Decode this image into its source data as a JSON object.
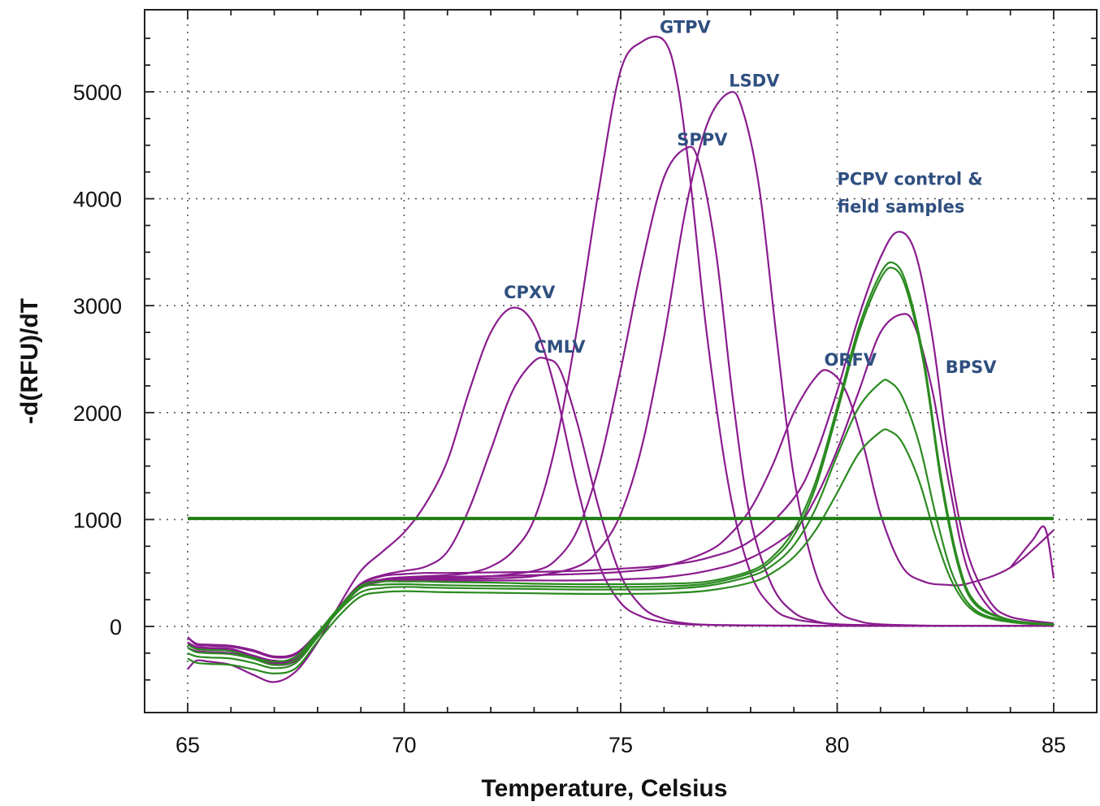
{
  "chart_data": {
    "type": "line",
    "title": "",
    "xlabel": "Temperature, Celsius",
    "ylabel": "-d(RFU)/dT",
    "xlim": [
      65,
      85
    ],
    "ylim": [
      -700,
      5800
    ],
    "xticks": [
      65,
      70,
      75,
      80,
      85
    ],
    "yticks": [
      0,
      1000,
      2000,
      3000,
      4000,
      5000
    ],
    "x_tick_labels": [
      "65",
      "70",
      "75",
      "80",
      "85"
    ],
    "y_tick_labels": [
      "0",
      "1000",
      "2000",
      "3000",
      "4000",
      "5000"
    ],
    "grid": true,
    "colors": {
      "purple": "#8a1c8e",
      "green": "#2b8a20",
      "threshold": "#1e7d14",
      "label": "#2f4f7f"
    },
    "threshold": {
      "y": 1010,
      "color": "#1e7d14"
    },
    "annotations": [
      {
        "text": "GTPV",
        "x": 75.9,
        "y": 5550
      },
      {
        "text": "LSDV",
        "x": 77.5,
        "y": 5050
      },
      {
        "text": "SPPV",
        "x": 76.3,
        "y": 4500
      },
      {
        "text": "PCPV control &",
        "x": 80.0,
        "y": 4130
      },
      {
        "text": "field samples",
        "x": 80.0,
        "y": 3870
      },
      {
        "text": "CPXV",
        "x": 72.3,
        "y": 3070
      },
      {
        "text": "CMLV",
        "x": 73.0,
        "y": 2560
      },
      {
        "text": "ORFV",
        "x": 79.7,
        "y": 2440
      },
      {
        "text": "BPSV",
        "x": 82.5,
        "y": 2370
      }
    ],
    "series": [
      {
        "color": "purple",
        "x": [
          65.0,
          65.2,
          65.5,
          66.0,
          66.5,
          67.0,
          67.5,
          68.0,
          68.5,
          69.0,
          69.5,
          70.0,
          70.5,
          71.0,
          71.5,
          72.0,
          72.5,
          73.0,
          73.5,
          74.0,
          74.5,
          75.0,
          75.5,
          76.0,
          76.5,
          77.0,
          77.5,
          78.0,
          79.0,
          80.0,
          81.0,
          82.0,
          83.0,
          84.0,
          84.5,
          85.0
        ],
        "y": [
          -400,
          -320,
          -330,
          -360,
          -450,
          -520,
          -420,
          -150,
          200,
          520,
          700,
          880,
          1150,
          1550,
          2200,
          2750,
          2980,
          2820,
          2200,
          1300,
          580,
          220,
          90,
          40,
          20,
          15,
          12,
          10,
          8,
          6,
          5,
          5,
          5,
          5,
          5,
          5
        ]
      },
      {
        "color": "purple",
        "x": [
          65.0,
          65.2,
          65.5,
          66.0,
          66.5,
          67.0,
          67.5,
          68.0,
          68.5,
          69.0,
          69.5,
          70.0,
          70.5,
          71.0,
          71.5,
          72.0,
          72.5,
          73.0,
          73.3,
          73.6,
          74.0,
          74.5,
          75.0,
          75.5,
          76.0,
          76.5,
          77.0,
          77.5,
          78.0,
          79.0,
          80.0,
          81.0,
          82.0,
          83.0,
          84.0,
          85.0
        ],
        "y": [
          -150,
          -210,
          -220,
          -230,
          -290,
          -340,
          -300,
          -80,
          180,
          400,
          480,
          520,
          560,
          700,
          1100,
          1650,
          2200,
          2480,
          2500,
          2400,
          1900,
          1100,
          480,
          180,
          70,
          30,
          15,
          10,
          8,
          6,
          5,
          5,
          5,
          5,
          5,
          5
        ]
      },
      {
        "color": "purple",
        "x": [
          65.0,
          65.2,
          65.5,
          66.0,
          66.5,
          67.0,
          67.5,
          68.0,
          68.5,
          69.0,
          69.5,
          70.0,
          70.5,
          71.0,
          71.5,
          72.0,
          72.5,
          73.0,
          73.5,
          74.0,
          74.5,
          75.0,
          75.5,
          76.0,
          76.3,
          76.6,
          77.0,
          77.5,
          78.0,
          78.5,
          79.0,
          80.0,
          81.0,
          82.0,
          83.0,
          84.0,
          85.0
        ],
        "y": [
          -150,
          -200,
          -210,
          -220,
          -280,
          -350,
          -320,
          -100,
          170,
          380,
          440,
          460,
          470,
          480,
          500,
          560,
          700,
          1000,
          1700,
          2800,
          4100,
          5200,
          5470,
          5480,
          5100,
          4200,
          2700,
          1300,
          500,
          180,
          70,
          20,
          10,
          5,
          5,
          5,
          5
        ]
      },
      {
        "color": "purple",
        "x": [
          65.0,
          65.2,
          65.5,
          66.0,
          66.5,
          67.0,
          67.5,
          68.0,
          68.5,
          69.0,
          69.5,
          70.0,
          70.5,
          71.0,
          72.0,
          73.0,
          73.5,
          74.0,
          74.5,
          75.0,
          75.5,
          76.0,
          76.5,
          76.8,
          77.2,
          77.6,
          78.0,
          78.5,
          79.0,
          79.5,
          80.0,
          81.0,
          82.0,
          83.0,
          84.0,
          85.0
        ],
        "y": [
          -150,
          -200,
          -210,
          -220,
          -280,
          -340,
          -310,
          -90,
          170,
          380,
          430,
          450,
          450,
          455,
          470,
          520,
          620,
          900,
          1500,
          2400,
          3400,
          4200,
          4470,
          4350,
          3500,
          2100,
          1000,
          380,
          130,
          50,
          20,
          10,
          5,
          5,
          5,
          5
        ]
      },
      {
        "color": "purple",
        "x": [
          65.0,
          65.2,
          65.5,
          66.0,
          66.5,
          67.0,
          67.5,
          68.0,
          68.5,
          69.0,
          69.5,
          70.0,
          70.5,
          71.0,
          72.0,
          73.0,
          74.0,
          74.5,
          75.0,
          75.5,
          76.0,
          76.5,
          77.0,
          77.5,
          77.8,
          78.2,
          78.6,
          79.0,
          79.5,
          80.0,
          80.5,
          81.0,
          82.0,
          83.0,
          84.0,
          85.0
        ],
        "y": [
          -150,
          -190,
          -200,
          -210,
          -270,
          -320,
          -300,
          -80,
          160,
          370,
          420,
          440,
          440,
          445,
          450,
          470,
          560,
          720,
          1050,
          1700,
          2700,
          3900,
          4700,
          4990,
          4850,
          4100,
          2700,
          1400,
          500,
          150,
          50,
          20,
          8,
          5,
          5,
          5
        ]
      },
      {
        "color": "purple",
        "x": [
          65.0,
          65.2,
          65.5,
          66.0,
          66.5,
          67.0,
          67.5,
          68.0,
          68.5,
          69.0,
          69.5,
          70.0,
          70.5,
          71.0,
          72.0,
          73.0,
          74.0,
          75.0,
          76.0,
          77.0,
          77.5,
          78.0,
          78.5,
          79.0,
          79.5,
          79.8,
          80.2,
          80.6,
          81.0,
          81.5,
          82.0,
          82.5,
          83.0,
          84.0,
          85.0
        ],
        "y": [
          -200,
          -230,
          -240,
          -250,
          -300,
          -360,
          -320,
          -100,
          160,
          380,
          440,
          460,
          460,
          465,
          470,
          480,
          490,
          510,
          560,
          700,
          850,
          1100,
          1500,
          2000,
          2330,
          2390,
          2200,
          1700,
          1050,
          560,
          420,
          390,
          400,
          550,
          900
        ]
      },
      {
        "color": "purple",
        "x": [
          84.0,
          84.5,
          84.8,
          85.0
        ],
        "y": [
          550,
          800,
          920,
          450
        ]
      },
      {
        "color": "purple",
        "x": [
          65.0,
          65.2,
          65.5,
          66.0,
          66.5,
          67.0,
          67.5,
          68.0,
          68.5,
          69.0,
          69.5,
          70.0,
          70.5,
          71.0,
          72.0,
          73.0,
          74.0,
          75.0,
          76.0,
          77.0,
          78.0,
          79.0,
          79.5,
          80.0,
          80.5,
          81.0,
          81.4,
          81.8,
          82.2,
          82.6,
          83.0,
          83.5,
          84.0,
          85.0
        ],
        "y": [
          -100,
          -170,
          -180,
          -190,
          -230,
          -290,
          -260,
          -60,
          170,
          390,
          470,
          490,
          500,
          500,
          505,
          510,
          520,
          540,
          570,
          640,
          800,
          1200,
          1600,
          2200,
          2900,
          3450,
          3690,
          3500,
          2700,
          1500,
          700,
          250,
          90,
          30
        ]
      },
      {
        "color": "purple",
        "x": [
          65.0,
          65.2,
          65.5,
          66.0,
          66.5,
          67.0,
          67.5,
          68.0,
          68.5,
          69.0,
          69.5,
          70.0,
          70.5,
          71.0,
          72.0,
          73.0,
          74.0,
          75.0,
          76.0,
          77.0,
          78.0,
          79.0,
          79.5,
          80.0,
          80.5,
          81.0,
          81.5,
          81.8,
          82.2,
          82.6,
          83.0,
          83.5,
          84.0,
          85.0
        ],
        "y": [
          -100,
          -160,
          -170,
          -180,
          -220,
          -280,
          -250,
          -60,
          160,
          360,
          420,
          430,
          430,
          430,
          430,
          430,
          430,
          440,
          460,
          520,
          640,
          900,
          1200,
          1650,
          2200,
          2750,
          2920,
          2800,
          2200,
          1300,
          550,
          180,
          60,
          20
        ]
      },
      {
        "color": "green",
        "x": [
          65.0,
          65.2,
          65.5,
          66.0,
          66.5,
          67.0,
          67.5,
          68.0,
          68.5,
          69.0,
          69.5,
          70.0,
          70.5,
          71.0,
          72.0,
          73.0,
          74.0,
          75.0,
          76.0,
          77.0,
          78.0,
          78.5,
          79.0,
          79.5,
          80.0,
          80.5,
          81.0,
          81.3,
          81.6,
          82.0,
          82.4,
          82.8,
          83.2,
          84.0,
          85.0
        ],
        "y": [
          -170,
          -210,
          -220,
          -230,
          -290,
          -330,
          -280,
          -60,
          180,
          380,
          420,
          420,
          420,
          415,
          410,
          400,
          395,
          395,
          400,
          420,
          520,
          650,
          900,
          1350,
          2050,
          2800,
          3300,
          3400,
          3200,
          2500,
          1400,
          600,
          220,
          60,
          20
        ]
      },
      {
        "color": "green",
        "x": [
          65.0,
          65.2,
          65.5,
          66.0,
          66.5,
          67.0,
          67.5,
          68.0,
          68.5,
          69.0,
          69.5,
          70.0,
          70.5,
          71.0,
          72.0,
          73.0,
          74.0,
          75.0,
          76.0,
          77.0,
          78.0,
          78.5,
          79.0,
          79.5,
          80.0,
          80.5,
          81.0,
          81.3,
          81.6,
          82.0,
          82.4,
          82.8,
          83.2,
          84.0,
          85.0
        ],
        "y": [
          -200,
          -240,
          -250,
          -260,
          -300,
          -360,
          -310,
          -80,
          160,
          360,
          390,
          395,
          390,
          385,
          380,
          375,
          370,
          370,
          375,
          400,
          500,
          620,
          850,
          1300,
          2000,
          2750,
          3250,
          3350,
          3150,
          2450,
          1350,
          560,
          200,
          60,
          20
        ]
      },
      {
        "color": "green",
        "x": [
          65.0,
          65.2,
          65.5,
          66.0,
          66.5,
          67.0,
          67.5,
          68.0,
          68.5,
          69.0,
          69.5,
          70.0,
          70.5,
          71.0,
          72.0,
          73.0,
          74.0,
          75.0,
          76.0,
          77.0,
          78.0,
          78.5,
          79.0,
          79.5,
          80.0,
          80.5,
          81.0,
          81.2,
          81.5,
          81.9,
          82.3,
          82.7,
          83.2,
          84.0,
          85.0
        ],
        "y": [
          -250,
          -280,
          -290,
          -300,
          -340,
          -390,
          -340,
          -100,
          150,
          320,
          360,
          370,
          365,
          360,
          355,
          350,
          345,
          345,
          350,
          380,
          470,
          570,
          760,
          1100,
          1600,
          2050,
          2280,
          2290,
          2150,
          1700,
          1000,
          450,
          150,
          50,
          20
        ]
      },
      {
        "color": "green",
        "x": [
          65.0,
          65.2,
          65.5,
          66.0,
          66.5,
          67.0,
          67.5,
          68.0,
          68.5,
          69.0,
          69.5,
          70.0,
          70.5,
          71.0,
          72.0,
          73.0,
          74.0,
          75.0,
          76.0,
          77.0,
          78.0,
          78.5,
          79.0,
          79.5,
          80.0,
          80.5,
          81.0,
          81.2,
          81.5,
          81.9,
          82.3,
          82.7,
          83.2,
          84.0,
          85.0
        ],
        "y": [
          -300,
          -340,
          -350,
          -360,
          -400,
          -440,
          -390,
          -140,
          100,
          280,
          320,
          330,
          325,
          320,
          315,
          310,
          305,
          305,
          310,
          335,
          410,
          500,
          650,
          900,
          1250,
          1620,
          1820,
          1830,
          1720,
          1350,
          800,
          380,
          130,
          40,
          15
        ]
      }
    ]
  }
}
